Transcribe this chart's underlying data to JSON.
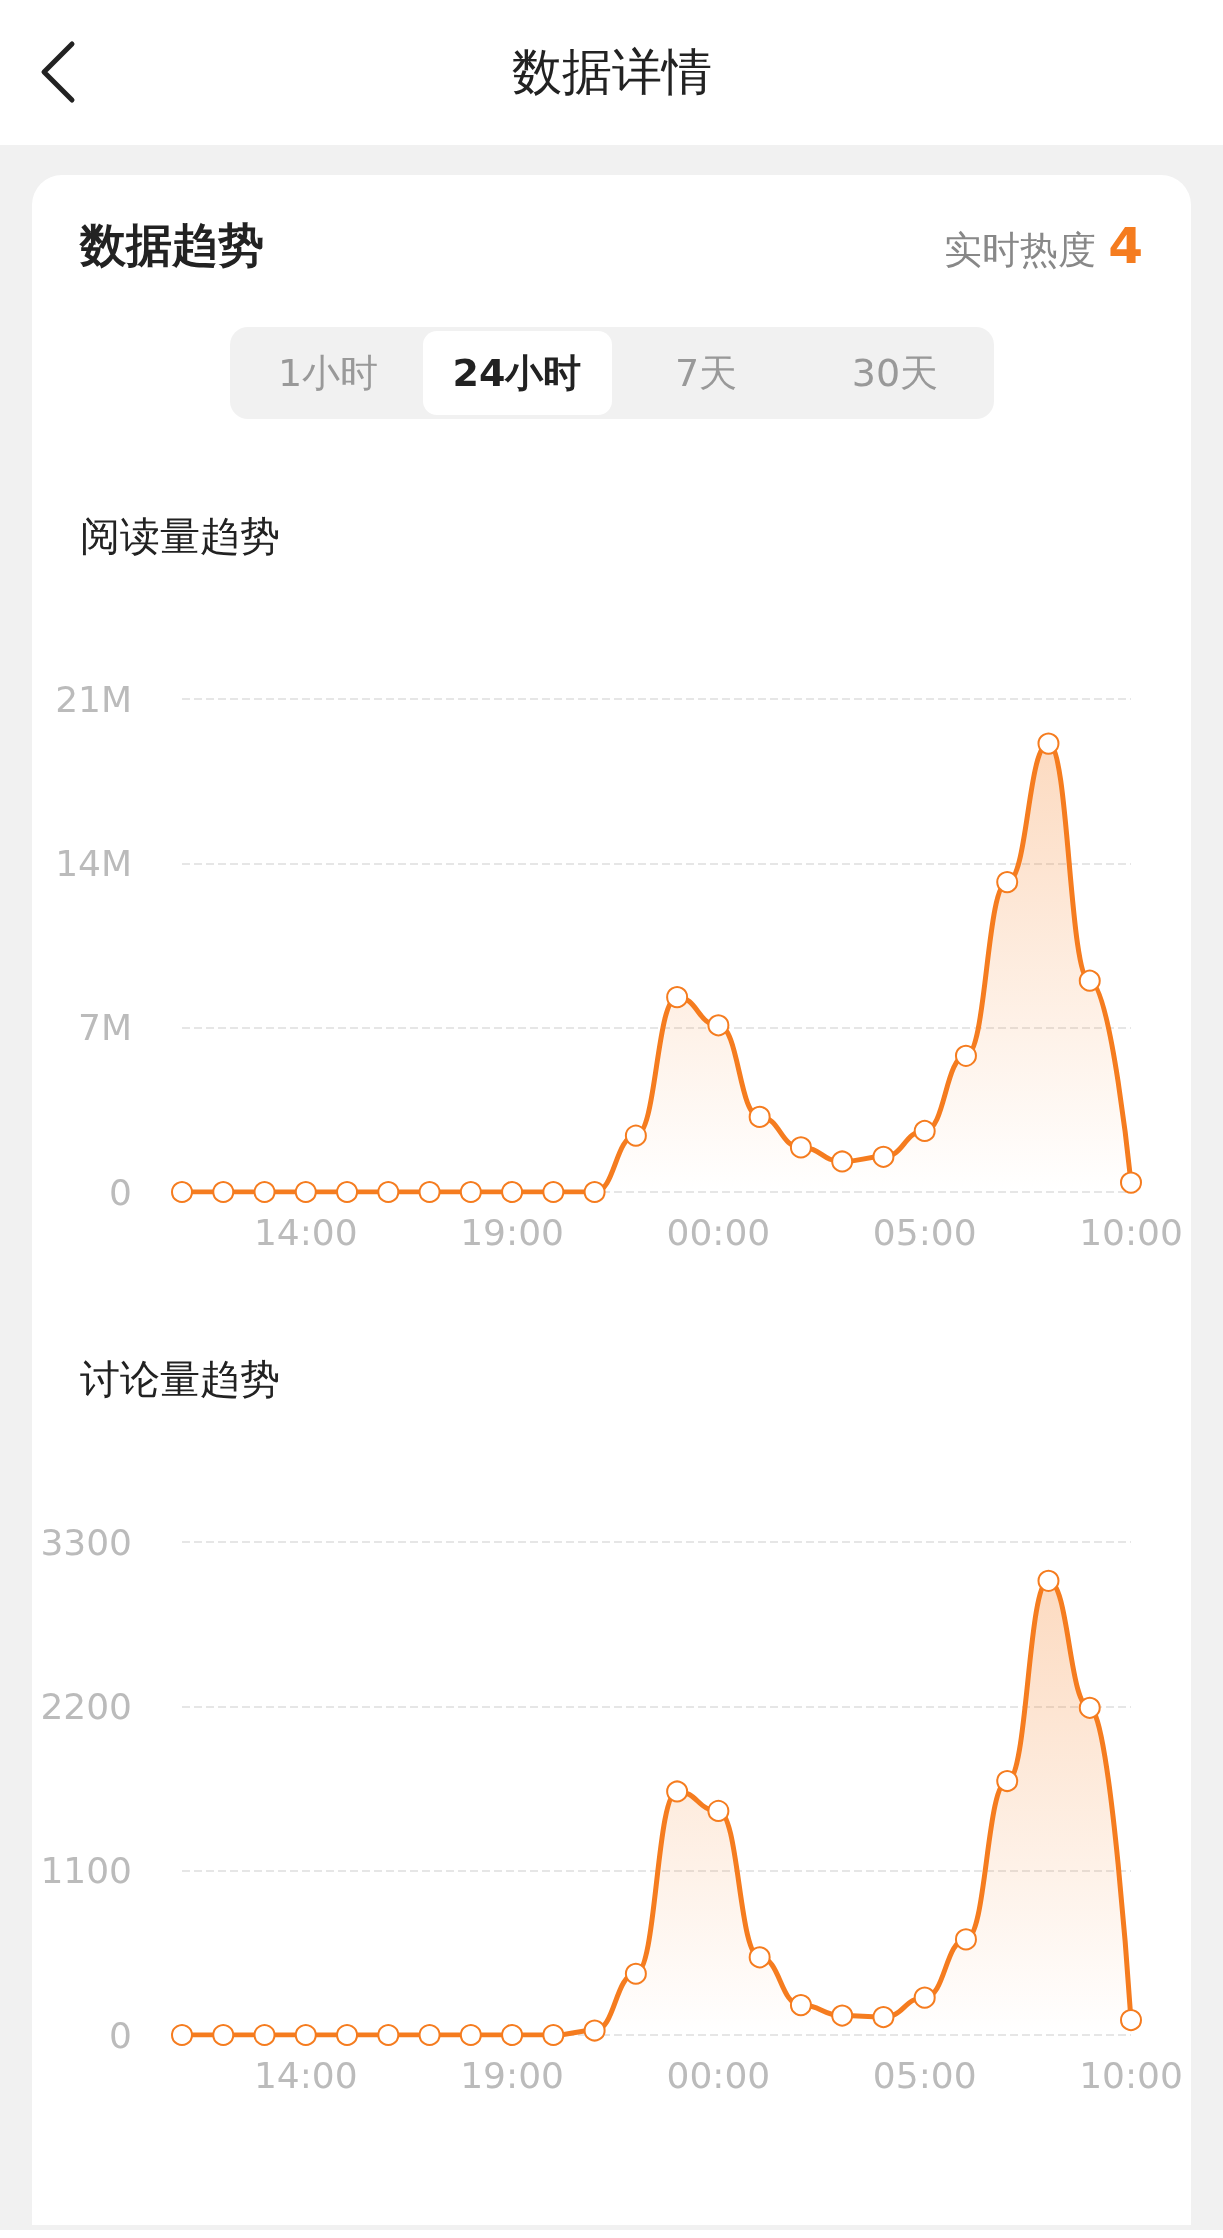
{
  "chart_data": [
    {
      "type": "other",
      "title": "数据详情",
      "annotations": [
        "数据趋势",
        "实时热度",
        "4",
        "1小时",
        "24小时",
        "7天",
        "30天"
      ]
    },
    {
      "type": "area",
      "title": "阅读量趋势",
      "categories": [
        null,
        null,
        null,
        "14:00",
        null,
        null,
        null,
        null,
        "19:00",
        null,
        null,
        null,
        null,
        "00:00",
        null,
        null,
        null,
        null,
        "05:00",
        null,
        null,
        null,
        null,
        "10:00"
      ],
      "series": [
        {
          "color": "#f57c1f",
          "values": [
            0,
            0,
            0,
            0,
            0,
            0,
            0,
            0,
            0,
            0,
            0,
            2.4,
            8.3,
            7.1,
            3.2,
            1.9,
            1.3,
            1.5,
            2.6,
            5.8,
            13.2,
            19.1,
            9.0,
            0.4
          ]
        }
      ],
      "ylim": [
        0,
        21
      ],
      "yticks": [
        0,
        {
          "value": 7,
          "label": "7M"
        },
        {
          "value": 14,
          "label": "14M"
        },
        {
          "value": 21,
          "label": "21M"
        }
      ],
      "grid": "y",
      "marker": "circle"
    },
    {
      "type": "area",
      "title": "讨论量趋势",
      "categories": [
        null,
        null,
        null,
        "14:00",
        null,
        null,
        null,
        null,
        "19:00",
        null,
        null,
        null,
        null,
        "00:00",
        null,
        null,
        null,
        null,
        "05:00",
        null,
        null,
        null,
        null,
        "10:00"
      ],
      "series": [
        {
          "color": "#f57c1f",
          "values": [
            0,
            0,
            0,
            0,
            0,
            0,
            0,
            0,
            0,
            0,
            30,
            410,
            1630,
            1500,
            520,
            200,
            130,
            120,
            250,
            640,
            1700,
            3040,
            2190,
            100
          ]
        }
      ],
      "ylim": [
        0,
        3300
      ],
      "yticks": [
        0,
        1100,
        2200,
        3300
      ],
      "grid": "y",
      "marker": "circle"
    }
  ]
}
